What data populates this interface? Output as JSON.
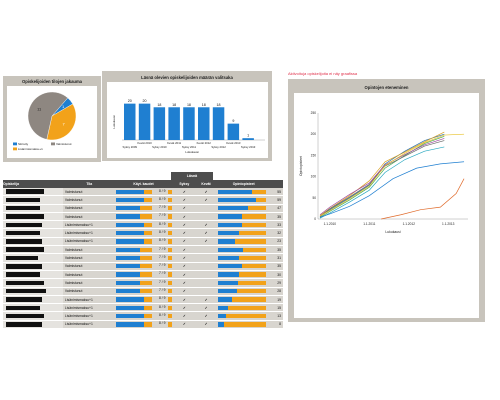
{
  "pie": {
    "title": "Opiskelijoiden tilojen jakauma",
    "slices": [
      {
        "label": "Siirretty",
        "value": 1,
        "color": "#1f7fd1"
      },
      {
        "label": "Lisänimismaksu+1",
        "value": 7,
        "color": "#f2a21a"
      },
      {
        "label": "Valmistunut",
        "value": 11,
        "color": "#8e8781"
      }
    ],
    "legend": [
      "Siirretty",
      "Valmistunut",
      "Lisänimismaksu+1"
    ]
  },
  "bar": {
    "title": "Läsnä olevien opiskelijoiden määrän valitsaka",
    "ylabel": "Lukukausi",
    "xlabel": "Lukukausi",
    "color": "#1f7fd1",
    "labels": [
      "20",
      "20",
      "18",
      "18",
      "18",
      "18",
      "18",
      "9",
      "1"
    ],
    "ticks_top": [
      "Kevät 2010",
      "Kevät 2011",
      "Kevät 2012",
      "Kevät 2013"
    ],
    "ticks_bottom": [
      "Syksy 2009",
      "Syksy 2010",
      "Syksy 2011",
      "Syksy 2012",
      "Syksy 2013"
    ]
  },
  "chart_data": [
    {
      "type": "pie",
      "title": "Opiskelijoiden tilojen jakauma",
      "categories": [
        "Siirretty",
        "Lisänimismaksu+1",
        "Valmistunut"
      ],
      "values": [
        1,
        7,
        11
      ]
    },
    {
      "type": "bar",
      "title": "Läsnä olevien opiskelijoiden määrän valitsaka",
      "xlabel": "Lukukausi",
      "ylabel": "Lukukausi",
      "categories": [
        "Syksy 2009",
        "Kevät 2010",
        "Syksy 2010",
        "Kevät 2011",
        "Syksy 2011",
        "Kevät 2012",
        "Syksy 2012",
        "Kevät 2013",
        "Syksy 2013"
      ],
      "values": [
        20,
        20,
        18,
        18,
        18,
        18,
        18,
        9,
        1
      ],
      "ylim": [
        0,
        22
      ]
    },
    {
      "type": "line",
      "title": "Opintojen eteneminen",
      "xlabel": "Lukukausi",
      "ylabel": "Opintopisteet",
      "x_ticks": [
        "1.1.2010",
        "1.1.2011",
        "1.1.2012",
        "1.1.2013"
      ],
      "yticks": [
        0,
        50,
        100,
        150,
        200,
        250
      ],
      "ylim": [
        0,
        250
      ],
      "x_range": [
        2009.7,
        2013.5
      ],
      "series": [
        {
          "color": "#2b6fa8",
          "values": [
            [
              2009.75,
              5
            ],
            [
              2010.0,
              22
            ],
            [
              2010.5,
              50
            ],
            [
              2011.0,
              80
            ],
            [
              2011.4,
              130
            ],
            [
              2011.9,
              160
            ],
            [
              2012.4,
              185
            ],
            [
              2012.9,
              200
            ]
          ]
        },
        {
          "color": "#d9a020",
          "values": [
            [
              2009.75,
              8
            ],
            [
              2010.0,
              25
            ],
            [
              2010.5,
              55
            ],
            [
              2011.0,
              90
            ],
            [
              2011.4,
              135
            ],
            [
              2011.9,
              158
            ],
            [
              2012.4,
              182
            ],
            [
              2012.9,
              205
            ]
          ]
        },
        {
          "color": "#4ba84b",
          "values": [
            [
              2009.75,
              3
            ],
            [
              2010.0,
              18
            ],
            [
              2010.5,
              45
            ],
            [
              2011.0,
              75
            ],
            [
              2011.4,
              120
            ],
            [
              2011.9,
              150
            ],
            [
              2012.4,
              178
            ],
            [
              2012.9,
              195
            ]
          ]
        },
        {
          "color": "#a04aa0",
          "values": [
            [
              2009.75,
              10
            ],
            [
              2010.0,
              28
            ],
            [
              2010.5,
              58
            ],
            [
              2011.0,
              85
            ],
            [
              2011.4,
              128
            ],
            [
              2011.9,
              152
            ],
            [
              2012.4,
              175
            ],
            [
              2012.9,
              190
            ]
          ]
        },
        {
          "color": "#6a6a6a",
          "values": [
            [
              2009.75,
              6
            ],
            [
              2010.0,
              24
            ],
            [
              2010.5,
              52
            ],
            [
              2011.0,
              82
            ],
            [
              2011.4,
              125
            ],
            [
              2011.9,
              148
            ],
            [
              2012.4,
              172
            ],
            [
              2012.9,
              185
            ]
          ]
        },
        {
          "color": "#e06a2a",
          "values": [
            [
              2011.3,
              0
            ],
            [
              2011.8,
              10
            ],
            [
              2012.3,
              22
            ],
            [
              2012.8,
              28
            ],
            [
              2013.2,
              60
            ],
            [
              2013.4,
              95
            ]
          ]
        },
        {
          "color": "#2aa8c0",
          "values": [
            [
              2009.75,
              2
            ],
            [
              2010.0,
              14
            ],
            [
              2010.5,
              40
            ],
            [
              2011.0,
              68
            ],
            [
              2011.4,
              110
            ],
            [
              2011.9,
              140
            ],
            [
              2012.4,
              160
            ],
            [
              2012.9,
              170
            ]
          ]
        },
        {
          "color": "#1f7fd1",
          "values": [
            [
              2009.75,
              4
            ],
            [
              2010.0,
              12
            ],
            [
              2010.5,
              30
            ],
            [
              2011.0,
              55
            ],
            [
              2011.6,
              95
            ],
            [
              2012.2,
              120
            ],
            [
              2012.8,
              130
            ],
            [
              2013.4,
              135
            ]
          ]
        },
        {
          "color": "#e8c22a",
          "values": [
            [
              2009.75,
              7
            ],
            [
              2010.0,
              20
            ],
            [
              2010.5,
              48
            ],
            [
              2011.0,
              78
            ],
            [
              2011.4,
              126
            ],
            [
              2011.9,
              155
            ],
            [
              2012.4,
              180
            ],
            [
              2012.9,
              198
            ],
            [
              2013.4,
              200
            ]
          ]
        }
      ]
    }
  ],
  "line": {
    "title": "Opintojen eteneminen",
    "ylabel": "Opintopisteet",
    "xlabel": "Lukukausi",
    "annotation": "Aktivoituja opiskelijoita ei näy graafissa",
    "yticks": [
      "250",
      "200",
      "150",
      "100",
      "50",
      "0"
    ],
    "xticks": [
      "1.1.2010",
      "1.1.2011",
      "1.1.2012",
      "1.1.2013"
    ]
  },
  "table": {
    "header_top": "Läsnä",
    "headers": [
      "Opiskelija",
      "Tila",
      "Käyt. kaudet",
      "Syksy",
      "Kevät",
      "Opintopisteet",
      ""
    ],
    "rows": [
      {
        "tila": "Valmistunut",
        "kaudet": "8 / 9",
        "kb": 0.78,
        "s": "✓",
        "k": "✓",
        "op": 0.72,
        "ot": "",
        "num": "55"
      },
      {
        "tila": "Valmistunut",
        "kaudet": "8 / 9",
        "kb": 0.78,
        "s": "✓",
        "k": "✓",
        "op": 0.8,
        "ot": "",
        "num": "59"
      },
      {
        "tila": "Valmistunut",
        "kaudet": "7 / 9",
        "kb": 0.68,
        "s": "✓",
        "k": "",
        "op": 0.62,
        "ot": "",
        "num": "47"
      },
      {
        "tila": "Valmistunut",
        "kaudet": "7 / 9",
        "kb": 0.68,
        "s": "✓",
        "k": "",
        "op": 0.5,
        "ot": "",
        "num": "35"
      },
      {
        "tila": "Lisänimismaksu+1",
        "kaudet": "8 / 9",
        "kb": 0.78,
        "s": "✓",
        "k": "✓",
        "op": 0.5,
        "ot": "",
        "num": "33"
      },
      {
        "tila": "Lisänimismaksu+1",
        "kaudet": "8 / 9",
        "kb": 0.78,
        "s": "✓",
        "k": "✓",
        "op": 0.44,
        "ot": "",
        "num": "32"
      },
      {
        "tila": "Lisänimismaksu+1",
        "kaudet": "8 / 9",
        "kb": 0.78,
        "s": "✓",
        "k": "✓",
        "op": 0.36,
        "ot": "",
        "num": "23"
      },
      {
        "tila": "Valmistunut",
        "kaudet": "7 / 9",
        "kb": 0.68,
        "s": "✓",
        "k": "",
        "op": 0.52,
        "ot": "",
        "num": "35"
      },
      {
        "tila": "Valmistunut",
        "kaudet": "7 / 9",
        "kb": 0.68,
        "s": "✓",
        "k": "",
        "op": 0.44,
        "ot": "",
        "num": "31"
      },
      {
        "tila": "Valmistunut",
        "kaudet": "7 / 9",
        "kb": 0.68,
        "s": "✓",
        "k": "",
        "op": 0.5,
        "ot": "",
        "num": "35"
      },
      {
        "tila": "Valmistunut",
        "kaudet": "7 / 9",
        "kb": 0.68,
        "s": "✓",
        "k": "",
        "op": 0.44,
        "ot": "",
        "num": "30"
      },
      {
        "tila": "Valmistunut",
        "kaudet": "7 / 9",
        "kb": 0.68,
        "s": "✓",
        "k": "",
        "op": 0.42,
        "ot": "",
        "num": "29"
      },
      {
        "tila": "Valmistunut",
        "kaudet": "7 / 9",
        "kb": 0.68,
        "s": "✓",
        "k": "",
        "op": 0.4,
        "ot": "",
        "num": "28"
      },
      {
        "tila": "Lisänimismaksu+1",
        "kaudet": "8 / 9",
        "kb": 0.78,
        "s": "✓",
        "k": "✓",
        "op": 0.3,
        "ot": "",
        "num": "19"
      },
      {
        "tila": "Lisänimismaksu+1",
        "kaudet": "8 / 9",
        "kb": 0.78,
        "s": "✓",
        "k": "✓",
        "op": 0.22,
        "ot": "",
        "num": "15"
      },
      {
        "tila": "Lisänimismaksu+1",
        "kaudet": "8 / 9",
        "kb": 0.78,
        "s": "✓",
        "k": "✓",
        "op": 0.18,
        "ot": "",
        "num": "13"
      },
      {
        "tila": "Lisänimismaksu+1",
        "kaudet": "8 / 9",
        "kb": 0.78,
        "s": "✓",
        "k": "✓",
        "op": 0.12,
        "ot": "",
        "num": "8"
      }
    ]
  }
}
